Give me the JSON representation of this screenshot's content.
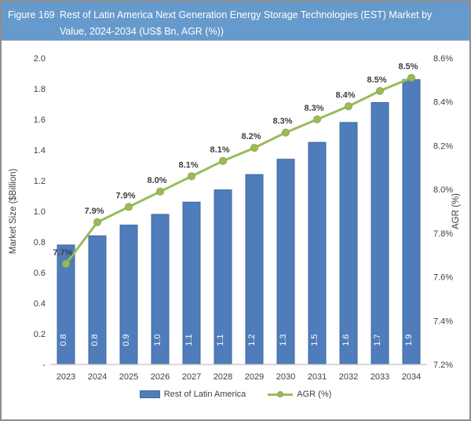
{
  "header": {
    "figure_label": "Figure 169",
    "title_line1": "Rest of Latin America Next Generation Energy Storage Technologies (EST) Market by",
    "title_line2": "Value, 2024-2034 (US$ Bn, AGR (%))",
    "bg_color": "#6699CC",
    "text_color": "#FFFFFF"
  },
  "chart_data": {
    "type": "combo (bar + line, dual axis)",
    "categories": [
      "2023",
      "2024",
      "2025",
      "2026",
      "2027",
      "2028",
      "2029",
      "2030",
      "2031",
      "2032",
      "2033",
      "2034"
    ],
    "series": [
      {
        "name": "Rest of Latin America",
        "type": "bar",
        "axis": "left",
        "value_labels": [
          "0.8",
          "0.8",
          "0.9",
          "1.0",
          "1.1",
          "1.1",
          "1.2",
          "1.3",
          "1.5",
          "1.6",
          "1.7",
          "1.9"
        ],
        "values_est": [
          0.78,
          0.84,
          0.91,
          0.98,
          1.06,
          1.14,
          1.24,
          1.34,
          1.45,
          1.58,
          1.71,
          1.86
        ],
        "color": "#4F7CBA",
        "border_color": "#41699F"
      },
      {
        "name": "AGR (%)",
        "type": "line",
        "axis": "right",
        "value_labels": [
          "7.7%",
          "7.9%",
          "7.9%",
          "8.0%",
          "8.1%",
          "8.1%",
          "8.2%",
          "8.3%",
          "8.3%",
          "8.4%",
          "8.5%",
          "8.5%"
        ],
        "values_est": [
          7.66,
          7.85,
          7.92,
          7.99,
          8.06,
          8.13,
          8.19,
          8.26,
          8.32,
          8.38,
          8.45,
          8.51
        ],
        "color": "#9BBB59",
        "marker_color": "#9BBB59",
        "marker_edge_color": "#8AA84B"
      }
    ],
    "left_axis": {
      "title": "Market Size ($Billion)",
      "min": 0,
      "max": 2.0,
      "step": 0.2,
      "tick_labels_bottom_to_top": [
        "-",
        "0.2",
        "0.4",
        "0.6",
        "0.8",
        "1.0",
        "1.2",
        "1.4",
        "1.6",
        "1.8",
        "2.0"
      ]
    },
    "right_axis": {
      "title": "AGR (%)",
      "min": 7.2,
      "max": 8.6,
      "step": 0.2,
      "tick_labels_bottom_to_top": [
        "7.2%",
        "7.4%",
        "7.6%",
        "7.8%",
        "8.0%",
        "8.2%",
        "8.4%",
        "8.6%"
      ]
    },
    "grid": false,
    "legend_position": "bottom",
    "legend": [
      "Rest of Latin America",
      "AGR (%)"
    ],
    "axis_line_color": "#C0C0C0",
    "text_color": "#404040"
  }
}
